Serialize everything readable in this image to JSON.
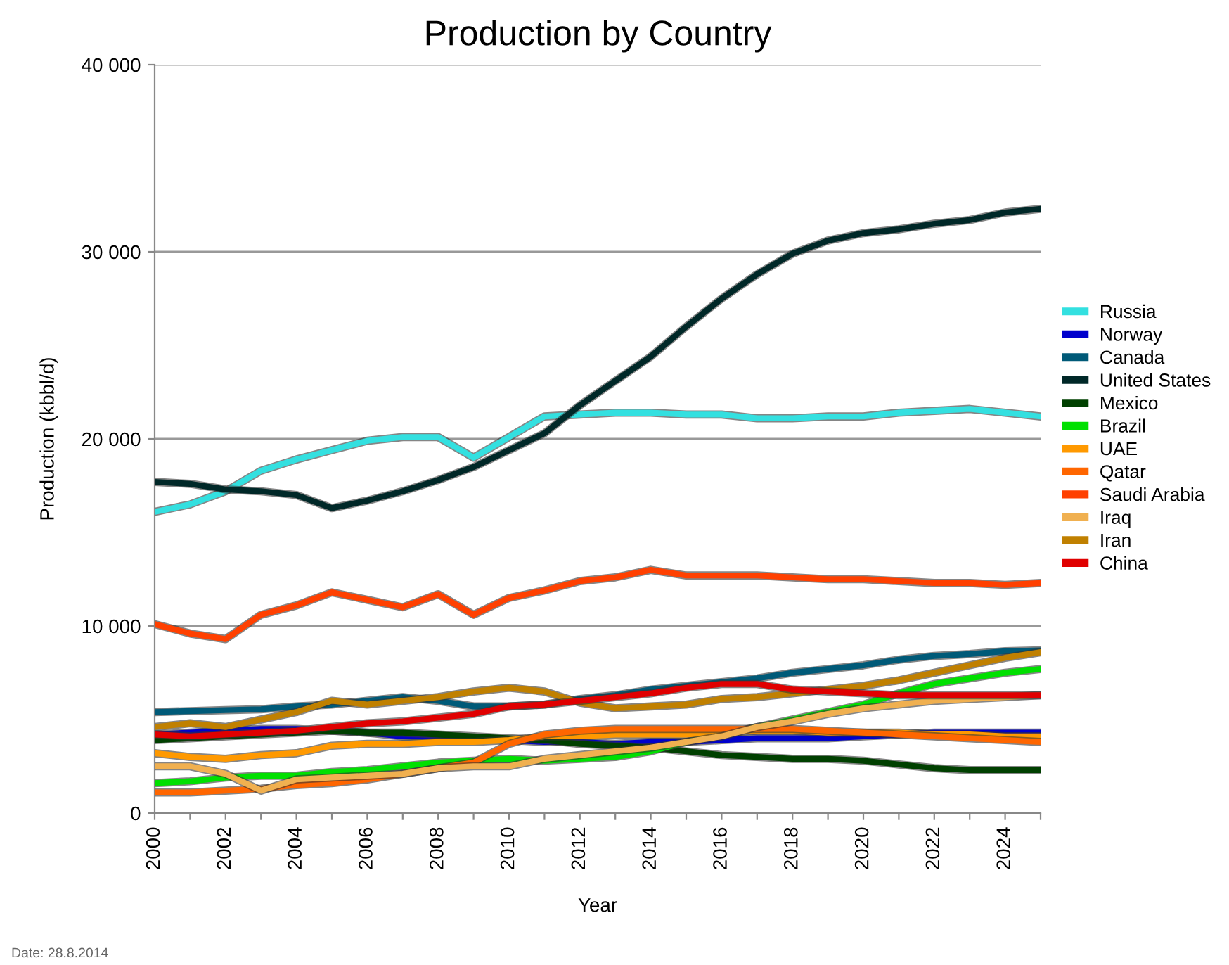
{
  "chart_data": {
    "type": "line",
    "title": "Production by Country",
    "xlabel": "Year",
    "ylabel": "Production (kbbl/d)",
    "annotations": [
      "Date: 28.8.2014"
    ],
    "x": [
      2000,
      2001,
      2002,
      2003,
      2004,
      2005,
      2006,
      2007,
      2008,
      2009,
      2010,
      2011,
      2012,
      2013,
      2014,
      2015,
      2016,
      2017,
      2018,
      2019,
      2020,
      2021,
      2022,
      2023,
      2024,
      2025
    ],
    "xlim": [
      2000,
      2025
    ],
    "xticks": [
      2000,
      {
        "value": 2001,
        "label": null
      },
      2002,
      {
        "value": 2003,
        "label": null
      },
      2004,
      {
        "value": 2005,
        "label": null
      },
      2006,
      {
        "value": 2007,
        "label": null
      },
      2008,
      {
        "value": 2009,
        "label": null
      },
      2010,
      {
        "value": 2011,
        "label": null
      },
      2012,
      {
        "value": 2013,
        "label": null
      },
      2014,
      {
        "value": 2015,
        "label": null
      },
      2016,
      {
        "value": 2017,
        "label": null
      },
      2018,
      {
        "value": 2019,
        "label": null
      },
      2020,
      {
        "value": 2021,
        "label": null
      },
      2022,
      {
        "value": 2023,
        "label": null
      },
      2024,
      {
        "value": 2025,
        "label": null
      }
    ],
    "ylim": [
      0,
      40000
    ],
    "yticks": [
      0,
      {
        "value": 10000,
        "label": "10 000"
      },
      {
        "value": 20000,
        "label": "20 000"
      },
      {
        "value": 30000,
        "label": "30 000"
      },
      {
        "value": 40000,
        "label": "40 000"
      }
    ],
    "grid": "y",
    "legend": "right",
    "marker": "none",
    "line_style": "solid",
    "series": [
      {
        "name": "Russia",
        "color": "#33e0e0",
        "values": [
          16100,
          16500,
          17200,
          18300,
          18900,
          19400,
          19900,
          20100,
          20100,
          19000,
          20100,
          21200,
          21300,
          21400,
          21400,
          21300,
          21300,
          21100,
          21100,
          21200,
          21200,
          21400,
          21500,
          21600,
          21400,
          21200
        ]
      },
      {
        "name": "Norway",
        "color": "#0000cc",
        "values": [
          4200,
          4300,
          4400,
          4500,
          4500,
          4400,
          4300,
          4100,
          4100,
          4000,
          3900,
          3800,
          3800,
          3700,
          3800,
          3800,
          3900,
          4000,
          4000,
          4000,
          4100,
          4200,
          4300,
          4300,
          4300,
          4300
        ]
      },
      {
        "name": "Canada",
        "color": "#005a78",
        "values": [
          5400,
          5450,
          5500,
          5550,
          5700,
          5800,
          6000,
          6200,
          6000,
          5700,
          5700,
          5800,
          6100,
          6300,
          6600,
          6800,
          7000,
          7200,
          7500,
          7700,
          7900,
          8200,
          8400,
          8500,
          8650,
          8700
        ]
      },
      {
        "name": "United States",
        "color": "#002828",
        "values": [
          17700,
          17600,
          17300,
          17200,
          17000,
          16300,
          16700,
          17200,
          17800,
          18500,
          19400,
          20300,
          21800,
          23100,
          24400,
          26000,
          27500,
          28800,
          29900,
          30600,
          31000,
          31200,
          31500,
          31700,
          32100,
          32300
        ]
      },
      {
        "name": "Mexico",
        "color": "#004000",
        "values": [
          3900,
          4000,
          4100,
          4200,
          4300,
          4400,
          4300,
          4300,
          4200,
          4100,
          4000,
          3900,
          3700,
          3600,
          3500,
          3300,
          3100,
          3000,
          2900,
          2900,
          2800,
          2600,
          2400,
          2300,
          2300,
          2300
        ]
      },
      {
        "name": "Brazil",
        "color": "#00e000",
        "values": [
          1600,
          1700,
          1900,
          2000,
          2000,
          2200,
          2300,
          2500,
          2700,
          2800,
          2900,
          2800,
          2900,
          3000,
          3300,
          3800,
          4200,
          4600,
          5000,
          5400,
          5800,
          6400,
          6900,
          7200,
          7500,
          7700
        ]
      },
      {
        "name": "UAE",
        "color": "#ff9900",
        "values": [
          3200,
          3000,
          2900,
          3100,
          3200,
          3600,
          3700,
          3700,
          3800,
          3800,
          3900,
          4100,
          4100,
          4200,
          4200,
          4200,
          4300,
          4400,
          4400,
          4300,
          4300,
          4300,
          4200,
          4200,
          4100,
          4100
        ]
      },
      {
        "name": "Qatar",
        "color": "#ff6600",
        "values": [
          1100,
          1100,
          1200,
          1300,
          1500,
          1600,
          1800,
          2100,
          2400,
          2700,
          3700,
          4200,
          4400,
          4500,
          4500,
          4500,
          4500,
          4500,
          4500,
          4400,
          4300,
          4200,
          4100,
          4000,
          3900,
          3800
        ]
      },
      {
        "name": "Saudi Arabia",
        "color": "#ff4000",
        "values": [
          10100,
          9600,
          9300,
          10600,
          11100,
          11800,
          11400,
          11000,
          11700,
          10600,
          11500,
          11900,
          12400,
          12600,
          13000,
          12700,
          12700,
          12700,
          12600,
          12500,
          12500,
          12400,
          12300,
          12300,
          12200,
          12300
        ]
      },
      {
        "name": "Iraq",
        "color": "#f0b050",
        "values": [
          2500,
          2500,
          2100,
          1200,
          1800,
          1900,
          2000,
          2100,
          2400,
          2500,
          2500,
          2900,
          3100,
          3300,
          3500,
          3800,
          4100,
          4600,
          4900,
          5300,
          5600,
          5800,
          6000,
          6100,
          6200,
          6300
        ]
      },
      {
        "name": "Iran",
        "color": "#c08000",
        "values": [
          4600,
          4800,
          4600,
          5000,
          5400,
          6000,
          5800,
          6000,
          6200,
          6500,
          6700,
          6500,
          5900,
          5600,
          5700,
          5800,
          6100,
          6200,
          6400,
          6600,
          6800,
          7100,
          7500,
          7900,
          8300,
          8600
        ]
      },
      {
        "name": "China",
        "color": "#e00000",
        "values": [
          4200,
          4100,
          4200,
          4300,
          4400,
          4600,
          4800,
          4900,
          5100,
          5300,
          5700,
          5800,
          6000,
          6200,
          6400,
          6700,
          6900,
          6900,
          6600,
          6500,
          6400,
          6300,
          6300,
          6300,
          6300,
          6300
        ]
      }
    ]
  }
}
